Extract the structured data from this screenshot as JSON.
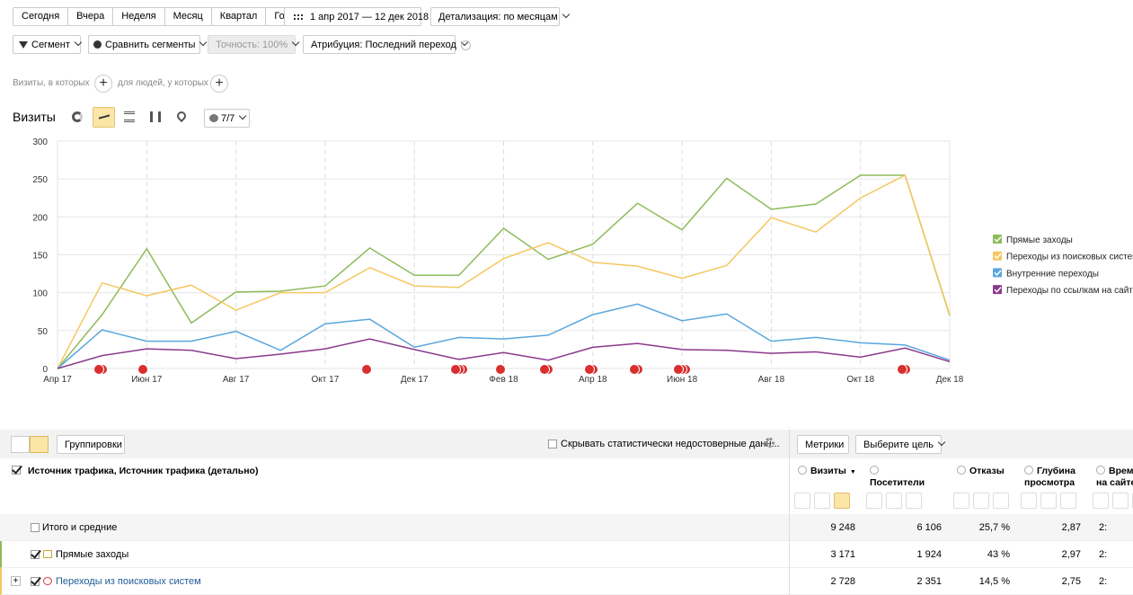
{
  "toolbar": {
    "periods": [
      "Сегодня",
      "Вчера",
      "Неделя",
      "Месяц",
      "Квартал",
      "Год"
    ],
    "date_range": "1 апр 2017 — 12 дек 2018",
    "detail": "Детализация: по месяцам"
  },
  "filters": {
    "segment": "Сегмент",
    "compare": "Сравнить сегменты",
    "accuracy": "Точность: 100%",
    "attribution": "Атрибуция: Последний переход"
  },
  "conditions": {
    "visits": "Визиты, в которых",
    "people": "для людей, у которых"
  },
  "chart_header": {
    "title": "Визиты",
    "annotations": "7/7"
  },
  "chart_data": {
    "type": "line",
    "categories": [
      "Апр 17",
      null,
      "Июн 17",
      null,
      "Авг 17",
      null,
      "Окт 17",
      null,
      "Дек 17",
      null,
      "Фев 18",
      null,
      "Апр 18",
      null,
      "Июн 18",
      null,
      "Авг 18",
      null,
      "Окт 18",
      null,
      "Дек 18"
    ],
    "series": [
      {
        "name": "Прямые заходы",
        "color": "#8dbb5a",
        "values": [
          0,
          71,
          158,
          60,
          101,
          102,
          109,
          159,
          123,
          123,
          185,
          144,
          164,
          218,
          183,
          251,
          210,
          217,
          255,
          255,
          70
        ]
      },
      {
        "name": "Переходы из поисковых систем",
        "color": "#f5c761",
        "values": [
          0,
          113,
          96,
          110,
          77,
          100,
          100,
          133,
          109,
          107,
          145,
          166,
          140,
          135,
          119,
          136,
          199,
          180,
          225,
          255,
          71
        ]
      },
      {
        "name": "Внутренние переходы",
        "color": "#5aa7dc",
        "values": [
          0,
          51,
          36,
          36,
          49,
          24,
          59,
          65,
          28,
          41,
          39,
          44,
          71,
          85,
          63,
          72,
          36,
          41,
          34,
          31,
          11
        ]
      },
      {
        "name": "Переходы по ссылкам на сайтах",
        "color": "#8a3a8c",
        "values": [
          0,
          17,
          26,
          24,
          13,
          19,
          26,
          39,
          25,
          12,
          21,
          11,
          28,
          33,
          25,
          24,
          20,
          22,
          15,
          27,
          9
        ]
      }
    ],
    "ylim": [
      0,
      300
    ],
    "yticks": [
      0,
      50,
      100,
      150,
      200,
      250,
      300
    ],
    "grid": true,
    "legend": "right"
  },
  "table_toolbar": {
    "groupings": "Группировки",
    "hide_unreliable": "Скрывать статистически недостоверные данн...",
    "metrics": "Метрики",
    "goal": "Выберите цель"
  },
  "table": {
    "dimension": "Источник трафика, Источник трафика (детально)",
    "columns": [
      "Визиты",
      "Посетители",
      "Отказы",
      "Глубина просмотра",
      "Время на сайте"
    ],
    "rows": [
      {
        "name": "Итого и средние",
        "cells": [
          "9 248",
          "6 106",
          "25,7 %",
          "2,87",
          "2:"
        ]
      },
      {
        "name": "Прямые заходы",
        "cells": [
          "3 171",
          "1 924",
          "43 %",
          "2,97",
          "2:"
        ]
      },
      {
        "name": "Переходы из поисковых систем",
        "cells": [
          "2 728",
          "2 351",
          "14,5 %",
          "2,75",
          "2:"
        ]
      }
    ]
  }
}
